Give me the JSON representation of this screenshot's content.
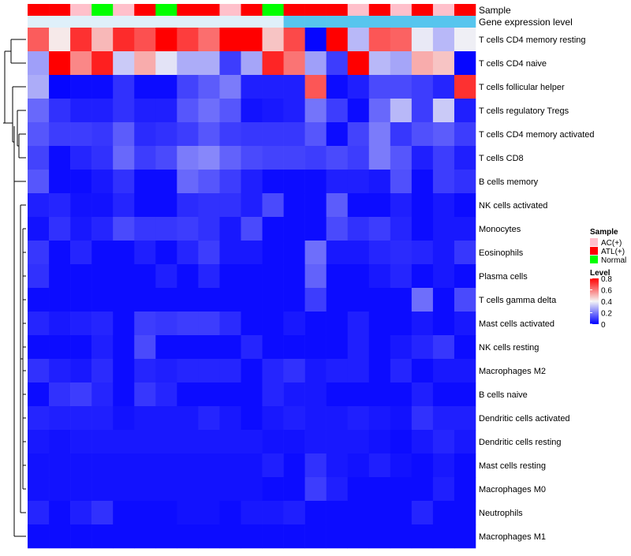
{
  "chart_data": {
    "type": "heatmap",
    "title": "",
    "annotation_tracks": [
      {
        "label": "Sample",
        "values": [
          "ATL(+)",
          "ATL(+)",
          "AC(+)",
          "Normal",
          "AC(+)",
          "ATL(+)",
          "Normal",
          "ATL(+)",
          "ATL(+)",
          "AC(+)",
          "ATL(+)",
          "Normal",
          "ATL(+)",
          "ATL(+)",
          "ATL(+)",
          "AC(+)",
          "ATL(+)",
          "AC(+)",
          "ATL(+)",
          "AC(+)",
          "ATL(+)"
        ]
      },
      {
        "label": "Gene expression level",
        "values": [
          "low",
          "low",
          "low",
          "low",
          "low",
          "low",
          "low",
          "low",
          "low",
          "low",
          "low",
          "low",
          "high",
          "high",
          "high",
          "high",
          "high",
          "high",
          "high",
          "high",
          "high"
        ]
      }
    ],
    "rows": [
      "T cells CD4 memory resting",
      "T cells CD4 naive",
      "T cells follicular helper",
      "T cells regulatory  Tregs",
      "T cells CD4 memory activated",
      "T cells CD8",
      "B cells memory",
      "NK cells activated",
      "Monocytes",
      "Eosinophils",
      "Plasma cells",
      "T cells gamma delta",
      "Mast cells activated",
      "NK cells resting",
      "Macrophages M2",
      "B cells naive",
      "Dendritic cells activated",
      "Dendritic cells resting",
      "Mast cells resting",
      "Macrophages M0",
      "Neutrophils",
      "Macrophages M1"
    ],
    "columns": 21,
    "values": [
      [
        0.65,
        0.42,
        0.72,
        0.5,
        0.73,
        0.67,
        0.8,
        0.7,
        0.62,
        0.8,
        0.8,
        0.48,
        0.68,
        0.01,
        0.8,
        0.3,
        0.66,
        0.64,
        0.38,
        0.3,
        0.39
      ],
      [
        0.26,
        0.8,
        0.58,
        0.75,
        0.33,
        0.52,
        0.37,
        0.28,
        0.28,
        0.1,
        0.27,
        0.74,
        0.61,
        0.26,
        0.1,
        0.8,
        0.3,
        0.27,
        0.52,
        0.48,
        0.01
      ],
      [
        0.28,
        0.01,
        0.02,
        0.02,
        0.08,
        0.02,
        0.02,
        0.11,
        0.15,
        0.2,
        0.05,
        0.05,
        0.05,
        0.66,
        0.02,
        0.05,
        0.12,
        0.12,
        0.1,
        0.06,
        0.72
      ],
      [
        0.17,
        0.08,
        0.05,
        0.05,
        0.08,
        0.05,
        0.05,
        0.14,
        0.18,
        0.14,
        0.03,
        0.04,
        0.05,
        0.19,
        0.1,
        0.02,
        0.17,
        0.3,
        0.1,
        0.33,
        0.05
      ],
      [
        0.14,
        0.1,
        0.1,
        0.09,
        0.15,
        0.07,
        0.08,
        0.1,
        0.14,
        0.1,
        0.09,
        0.09,
        0.09,
        0.14,
        0.02,
        0.11,
        0.2,
        0.09,
        0.13,
        0.15,
        0.1
      ],
      [
        0.11,
        0.02,
        0.06,
        0.08,
        0.17,
        0.1,
        0.12,
        0.2,
        0.22,
        0.16,
        0.12,
        0.11,
        0.11,
        0.1,
        0.12,
        0.1,
        0.2,
        0.14,
        0.05,
        0.1,
        0.05
      ],
      [
        0.14,
        0.02,
        0.02,
        0.04,
        0.08,
        0.02,
        0.02,
        0.17,
        0.14,
        0.1,
        0.05,
        0.02,
        0.02,
        0.02,
        0.05,
        0.05,
        0.04,
        0.13,
        0.02,
        0.1,
        0.08
      ],
      [
        0.05,
        0.06,
        0.03,
        0.03,
        0.06,
        0.02,
        0.02,
        0.07,
        0.08,
        0.08,
        0.05,
        0.12,
        0.02,
        0.02,
        0.15,
        0.02,
        0.02,
        0.05,
        0.02,
        0.04,
        0.02
      ],
      [
        0.03,
        0.08,
        0.04,
        0.06,
        0.12,
        0.09,
        0.09,
        0.1,
        0.08,
        0.04,
        0.12,
        0.02,
        0.02,
        0.02,
        0.12,
        0.08,
        0.1,
        0.06,
        0.02,
        0.04,
        0.04
      ],
      [
        0.09,
        0.02,
        0.06,
        0.02,
        0.02,
        0.05,
        0.02,
        0.06,
        0.1,
        0.04,
        0.04,
        0.02,
        0.02,
        0.18,
        0.04,
        0.04,
        0.06,
        0.07,
        0.06,
        0.04,
        0.09
      ],
      [
        0.08,
        0.02,
        0.02,
        0.02,
        0.02,
        0.02,
        0.05,
        0.02,
        0.06,
        0.02,
        0.02,
        0.02,
        0.02,
        0.16,
        0.02,
        0.02,
        0.04,
        0.06,
        0.02,
        0.04,
        0.02
      ],
      [
        0.02,
        0.02,
        0.02,
        0.02,
        0.02,
        0.02,
        0.02,
        0.02,
        0.02,
        0.02,
        0.02,
        0.02,
        0.02,
        0.1,
        0.02,
        0.02,
        0.02,
        0.02,
        0.18,
        0.02,
        0.12
      ],
      [
        0.06,
        0.04,
        0.05,
        0.06,
        0.02,
        0.1,
        0.09,
        0.1,
        0.1,
        0.07,
        0.02,
        0.02,
        0.04,
        0.02,
        0.02,
        0.05,
        0.02,
        0.02,
        0.04,
        0.02,
        0.04
      ],
      [
        0.02,
        0.02,
        0.02,
        0.05,
        0.02,
        0.12,
        0.02,
        0.02,
        0.02,
        0.02,
        0.06,
        0.02,
        0.02,
        0.02,
        0.02,
        0.05,
        0.02,
        0.04,
        0.06,
        0.09,
        0.02
      ],
      [
        0.08,
        0.05,
        0.04,
        0.07,
        0.02,
        0.06,
        0.05,
        0.06,
        0.06,
        0.06,
        0.02,
        0.06,
        0.08,
        0.04,
        0.05,
        0.05,
        0.02,
        0.06,
        0.02,
        0.04,
        0.04
      ],
      [
        0.02,
        0.08,
        0.1,
        0.06,
        0.02,
        0.09,
        0.06,
        0.02,
        0.02,
        0.02,
        0.02,
        0.06,
        0.04,
        0.04,
        0.02,
        0.02,
        0.02,
        0.02,
        0.05,
        0.02,
        0.02
      ],
      [
        0.06,
        0.05,
        0.05,
        0.05,
        0.03,
        0.04,
        0.04,
        0.04,
        0.06,
        0.04,
        0.02,
        0.04,
        0.05,
        0.04,
        0.04,
        0.05,
        0.04,
        0.03,
        0.08,
        0.05,
        0.05
      ],
      [
        0.04,
        0.03,
        0.04,
        0.04,
        0.04,
        0.04,
        0.04,
        0.04,
        0.04,
        0.04,
        0.04,
        0.03,
        0.03,
        0.04,
        0.04,
        0.04,
        0.03,
        0.02,
        0.04,
        0.06,
        0.04
      ],
      [
        0.03,
        0.03,
        0.03,
        0.03,
        0.03,
        0.03,
        0.03,
        0.03,
        0.03,
        0.03,
        0.03,
        0.05,
        0.02,
        0.08,
        0.04,
        0.03,
        0.05,
        0.03,
        0.02,
        0.04,
        0.02
      ],
      [
        0.03,
        0.03,
        0.03,
        0.03,
        0.03,
        0.03,
        0.03,
        0.03,
        0.03,
        0.03,
        0.03,
        0.02,
        0.02,
        0.1,
        0.05,
        0.02,
        0.02,
        0.02,
        0.02,
        0.05,
        0.02
      ],
      [
        0.06,
        0.02,
        0.05,
        0.08,
        0.02,
        0.02,
        0.02,
        0.03,
        0.03,
        0.02,
        0.04,
        0.04,
        0.05,
        0.02,
        0.02,
        0.02,
        0.02,
        0.02,
        0.06,
        0.02,
        0.02
      ],
      [
        0.02,
        0.02,
        0.02,
        0.02,
        0.02,
        0.02,
        0.02,
        0.02,
        0.02,
        0.02,
        0.02,
        0.02,
        0.02,
        0.02,
        0.02,
        0.02,
        0.02,
        0.02,
        0.02,
        0.02,
        0.02
      ]
    ],
    "color_scale": {
      "range": [
        0,
        0.8
      ],
      "stops": [
        {
          "value": 0,
          "color": "#0000ff"
        },
        {
          "value": 0.4,
          "color": "#f5f5f5"
        },
        {
          "value": 0.8,
          "color": "#ff0000"
        }
      ]
    },
    "legends": {
      "sample": {
        "title": "Sample",
        "entries": [
          {
            "label": "AC(+)",
            "color": "#ffc0cb"
          },
          {
            "label": "ATL(+)",
            "color": "#ff0000"
          },
          {
            "label": "Normal",
            "color": "#00ff00"
          }
        ]
      },
      "level": {
        "title": "Level",
        "ticks": [
          "0.8",
          "0.6",
          "0.4",
          "0.2",
          "0"
        ]
      }
    },
    "expression_colors": {
      "low": "#dff0fa",
      "high": "#57c5ee"
    },
    "row_dendrogram": true
  }
}
